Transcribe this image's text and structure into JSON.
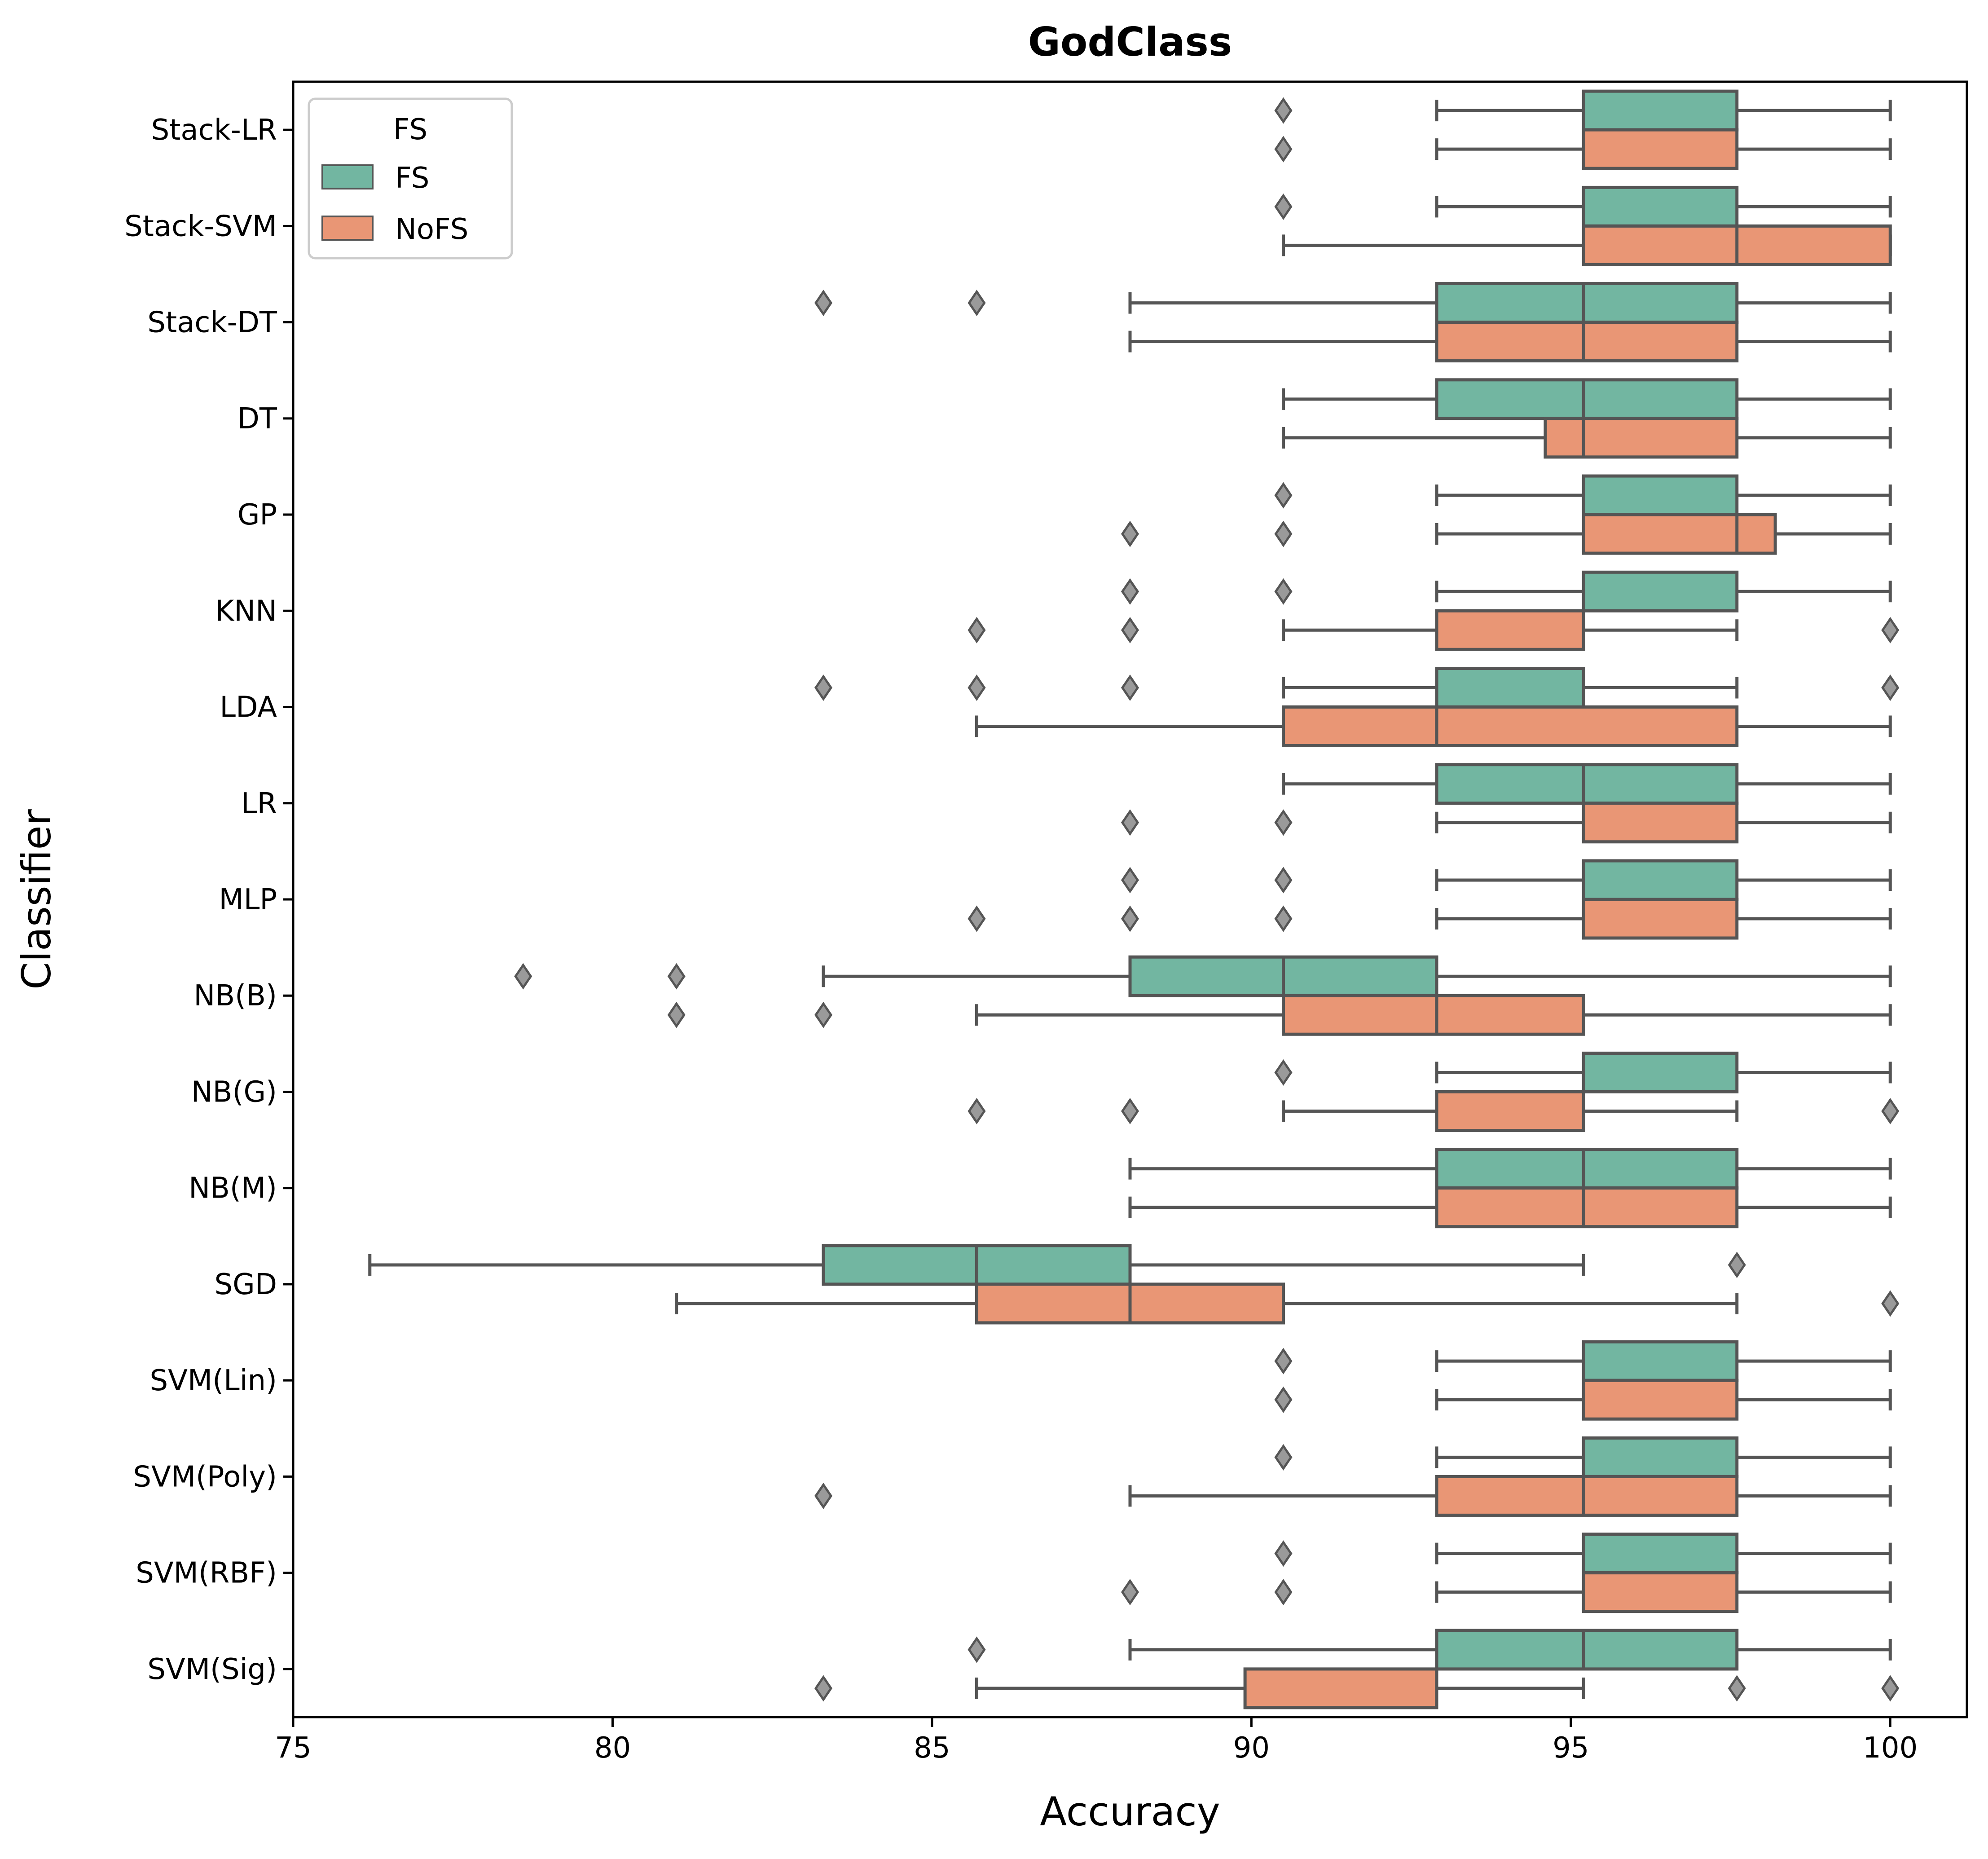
{
  "chart_data": {
    "type": "boxplot",
    "orientation": "horizontal",
    "title": "GodClass",
    "xlabel": "Accuracy",
    "ylabel": "Classifier",
    "xlim": [
      75,
      101.2
    ],
    "xticks": [
      75,
      80,
      85,
      90,
      95,
      100
    ],
    "grid": false,
    "legend": {
      "title": "FS",
      "placement": "top-left",
      "entries": [
        {
          "name": "FS",
          "color": "#72b6a1"
        },
        {
          "name": "NoFS",
          "color": "#e99675"
        }
      ]
    },
    "colors": {
      "FS": "#72b6a1",
      "NoFS": "#e99675",
      "edge": "#555555",
      "flier": "#9a9a9a"
    },
    "categories": [
      "Stack-LR",
      "Stack-SVM",
      "Stack-DT",
      "DT",
      "GP",
      "KNN",
      "LDA",
      "LR",
      "MLP",
      "NB(B)",
      "NB(G)",
      "NB(M)",
      "SGD",
      "SVM(Lin)",
      "SVM(Poly)",
      "SVM(RBF)",
      "SVM(Sig)"
    ],
    "series": [
      {
        "name": "FS",
        "boxes": [
          {
            "whislo": 92.9,
            "q1": 95.2,
            "med": 95.2,
            "q3": 97.6,
            "whishi": 100,
            "fliers": [
              90.5
            ]
          },
          {
            "whislo": 92.9,
            "q1": 95.2,
            "med": 95.2,
            "q3": 97.6,
            "whishi": 100,
            "fliers": [
              90.5
            ]
          },
          {
            "whislo": 88.1,
            "q1": 92.9,
            "med": 95.2,
            "q3": 97.6,
            "whishi": 100,
            "fliers": [
              83.3,
              85.7
            ]
          },
          {
            "whislo": 90.5,
            "q1": 92.9,
            "med": 95.2,
            "q3": 97.6,
            "whishi": 100,
            "fliers": []
          },
          {
            "whislo": 92.9,
            "q1": 95.2,
            "med": 95.2,
            "q3": 97.6,
            "whishi": 100,
            "fliers": [
              90.5
            ]
          },
          {
            "whislo": 92.9,
            "q1": 95.2,
            "med": 95.2,
            "q3": 97.6,
            "whishi": 100,
            "fliers": [
              88.1,
              90.5
            ]
          },
          {
            "whislo": 90.5,
            "q1": 92.9,
            "med": 92.9,
            "q3": 95.2,
            "whishi": 97.6,
            "fliers": [
              83.3,
              85.7,
              88.1,
              100
            ]
          },
          {
            "whislo": 90.5,
            "q1": 92.9,
            "med": 95.2,
            "q3": 97.6,
            "whishi": 100,
            "fliers": []
          },
          {
            "whislo": 92.9,
            "q1": 95.2,
            "med": 95.2,
            "q3": 97.6,
            "whishi": 100,
            "fliers": [
              88.1,
              90.5
            ]
          },
          {
            "whislo": 83.3,
            "q1": 88.1,
            "med": 90.5,
            "q3": 92.9,
            "whishi": 100,
            "fliers": [
              78.6,
              81.0
            ]
          },
          {
            "whislo": 92.9,
            "q1": 95.2,
            "med": 95.2,
            "q3": 97.6,
            "whishi": 100,
            "fliers": [
              90.5
            ]
          },
          {
            "whislo": 88.1,
            "q1": 92.9,
            "med": 95.2,
            "q3": 97.6,
            "whishi": 100,
            "fliers": []
          },
          {
            "whislo": 76.2,
            "q1": 83.3,
            "med": 85.7,
            "q3": 88.1,
            "whishi": 95.2,
            "fliers": [
              97.6
            ]
          },
          {
            "whislo": 92.9,
            "q1": 95.2,
            "med": 95.2,
            "q3": 97.6,
            "whishi": 100,
            "fliers": [
              90.5
            ]
          },
          {
            "whislo": 92.9,
            "q1": 95.2,
            "med": 95.2,
            "q3": 97.6,
            "whishi": 100,
            "fliers": [
              90.5
            ]
          },
          {
            "whislo": 92.9,
            "q1": 95.2,
            "med": 95.2,
            "q3": 97.6,
            "whishi": 100,
            "fliers": [
              90.5
            ]
          },
          {
            "whislo": 88.1,
            "q1": 92.9,
            "med": 95.2,
            "q3": 97.6,
            "whishi": 100,
            "fliers": [
              85.7
            ]
          }
        ]
      },
      {
        "name": "NoFS",
        "boxes": [
          {
            "whislo": 92.9,
            "q1": 95.2,
            "med": 95.2,
            "q3": 97.6,
            "whishi": 100,
            "fliers": [
              90.5
            ]
          },
          {
            "whislo": 90.5,
            "q1": 95.2,
            "med": 97.6,
            "q3": 100,
            "whishi": 100,
            "fliers": []
          },
          {
            "whislo": 88.1,
            "q1": 92.9,
            "med": 95.2,
            "q3": 97.6,
            "whishi": 100,
            "fliers": []
          },
          {
            "whislo": 90.5,
            "q1": 94.6,
            "med": 95.2,
            "q3": 97.6,
            "whishi": 100,
            "fliers": []
          },
          {
            "whislo": 92.9,
            "q1": 95.2,
            "med": 97.6,
            "q3": 98.2,
            "whishi": 100,
            "fliers": [
              88.1,
              90.5
            ]
          },
          {
            "whislo": 90.5,
            "q1": 92.9,
            "med": 92.9,
            "q3": 95.2,
            "whishi": 97.6,
            "fliers": [
              85.7,
              88.1,
              100
            ]
          },
          {
            "whislo": 85.7,
            "q1": 90.5,
            "med": 92.9,
            "q3": 97.6,
            "whishi": 100,
            "fliers": []
          },
          {
            "whislo": 92.9,
            "q1": 95.2,
            "med": 95.2,
            "q3": 97.6,
            "whishi": 100,
            "fliers": [
              88.1,
              90.5
            ]
          },
          {
            "whislo": 92.9,
            "q1": 95.2,
            "med": 95.2,
            "q3": 97.6,
            "whishi": 100,
            "fliers": [
              85.7,
              88.1,
              90.5
            ]
          },
          {
            "whislo": 85.7,
            "q1": 90.5,
            "med": 92.9,
            "q3": 95.2,
            "whishi": 100,
            "fliers": [
              81.0,
              83.3
            ]
          },
          {
            "whislo": 90.5,
            "q1": 92.9,
            "med": 92.9,
            "q3": 95.2,
            "whishi": 97.6,
            "fliers": [
              85.7,
              88.1,
              100
            ]
          },
          {
            "whislo": 88.1,
            "q1": 92.9,
            "med": 95.2,
            "q3": 97.6,
            "whishi": 100,
            "fliers": []
          },
          {
            "whislo": 81.0,
            "q1": 85.7,
            "med": 88.1,
            "q3": 90.5,
            "whishi": 97.6,
            "fliers": [
              100
            ]
          },
          {
            "whislo": 92.9,
            "q1": 95.2,
            "med": 95.2,
            "q3": 97.6,
            "whishi": 100,
            "fliers": [
              90.5
            ]
          },
          {
            "whislo": 88.1,
            "q1": 92.9,
            "med": 95.2,
            "q3": 97.6,
            "whishi": 100,
            "fliers": [
              83.3
            ]
          },
          {
            "whislo": 92.9,
            "q1": 95.2,
            "med": 95.2,
            "q3": 97.6,
            "whishi": 100,
            "fliers": [
              88.1,
              90.5
            ]
          },
          {
            "whislo": 85.7,
            "q1": 89.9,
            "med": 92.9,
            "q3": 92.9,
            "whishi": 95.2,
            "fliers": [
              83.3,
              97.6,
              100
            ]
          }
        ]
      }
    ]
  }
}
